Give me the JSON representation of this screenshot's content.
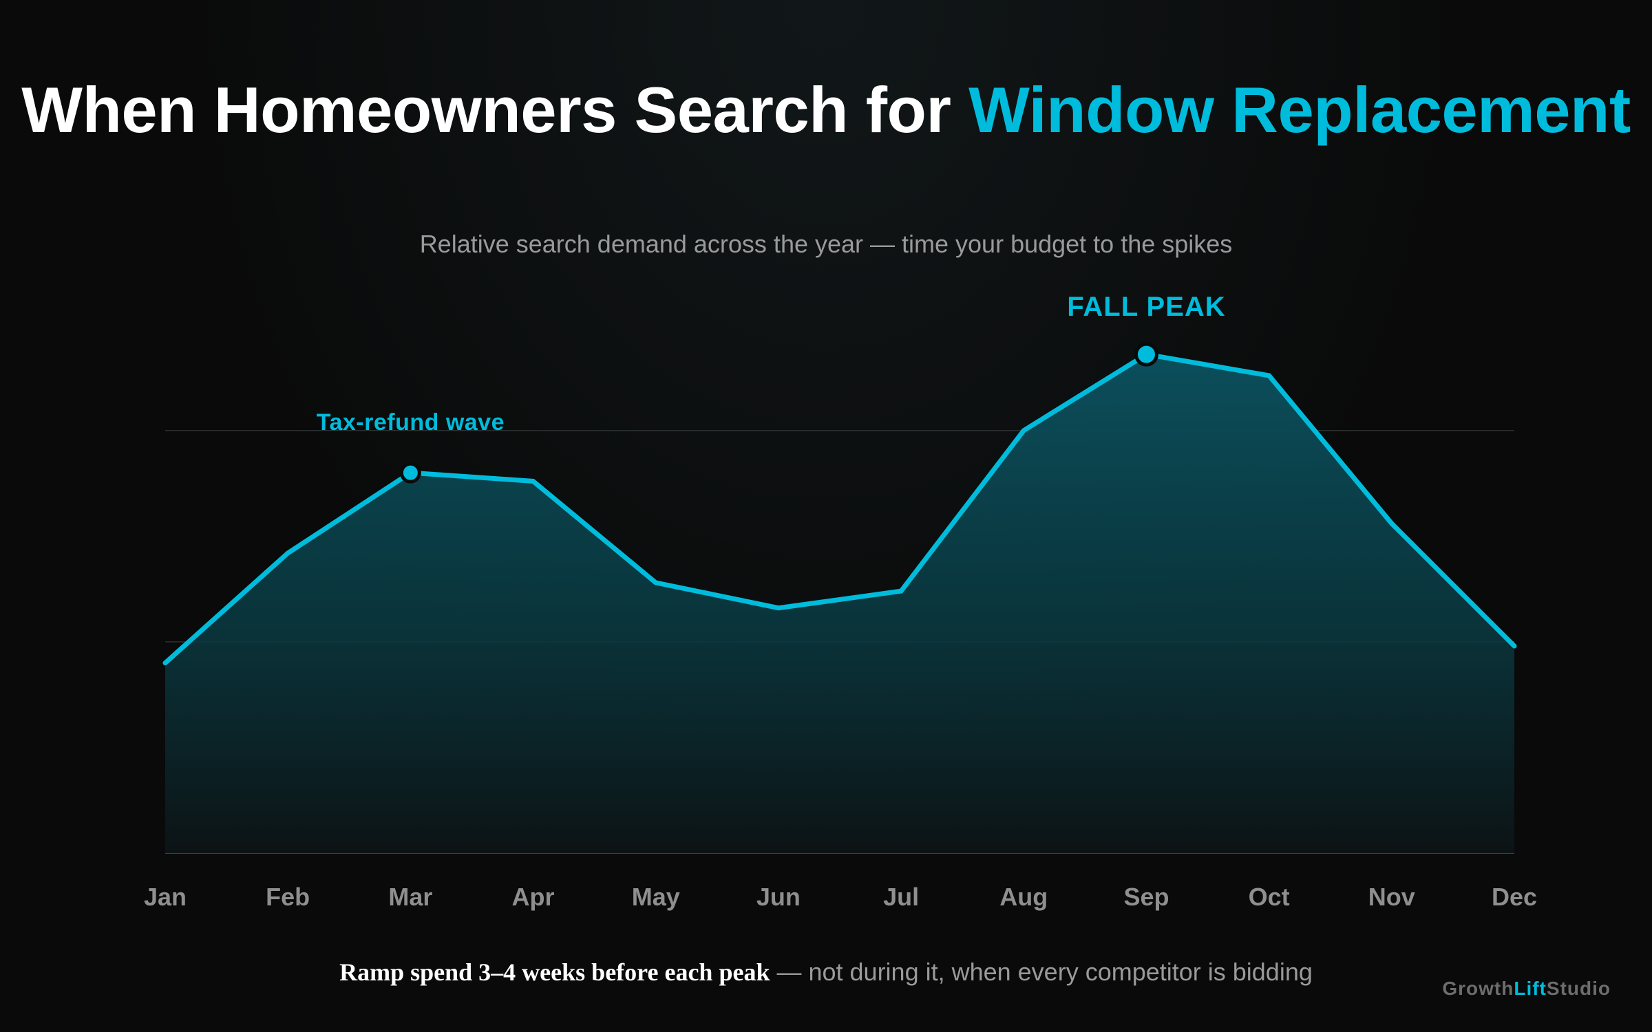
{
  "header": {
    "title_part1": "When Homeowners Search for ",
    "title_part2": "Window Replacement",
    "subtitle": "Relative search demand across the year — time your budget to the spikes"
  },
  "colors": {
    "accent": "#00bcdc",
    "background": "#0a0a0a",
    "muted_text": "#9a9a9a",
    "area_fill_top": "#0b4b57",
    "gridline": "#2a2f31"
  },
  "chart_data": {
    "type": "area",
    "title": "When Homeowners Search for Window Replacement",
    "subtitle": "Relative search demand across the year — time your budget to the spikes",
    "xlabel": "",
    "ylabel": "",
    "categories": [
      "Jan",
      "Feb",
      "Mar",
      "Apr",
      "May",
      "Jun",
      "Jul",
      "Aug",
      "Sep",
      "Oct",
      "Nov",
      "Dec"
    ],
    "values": [
      45,
      71,
      90,
      88,
      64,
      58,
      62,
      100,
      118,
      113,
      78,
      49
    ],
    "ylim": [
      0,
      140
    ],
    "gridlines_at": [
      50,
      100
    ],
    "grid": true,
    "legend": "none",
    "annotations": [
      {
        "category": "Mar",
        "label": "Tax-refund wave",
        "emphasis": "small"
      },
      {
        "category": "Sep",
        "label": "FALL PEAK",
        "emphasis": "large"
      }
    ]
  },
  "footer": {
    "note_strong": "Ramp spend 3–4 weeks before each peak",
    "note_rest": " — not during it, when every competitor is bidding",
    "brand_part1": "Growth",
    "brand_part2": "Lift",
    "brand_part3": "Studio"
  }
}
